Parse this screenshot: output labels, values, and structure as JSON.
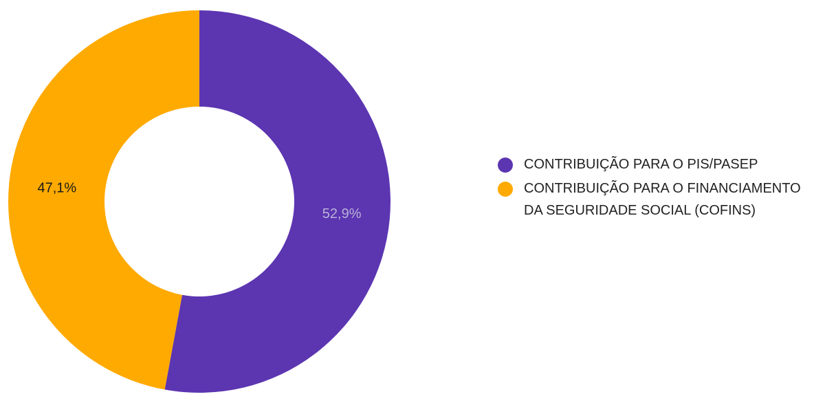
{
  "chart_data": {
    "type": "pie",
    "donut": true,
    "title": "",
    "legend_position": "right",
    "categories": [
      "CONTRIBUIÇÃO PARA O PIS/PASEP",
      "CONTRIBUIÇÃO PARA O FINANCIAMENTO DA SEGURIDADE SOCIAL (COFINS)"
    ],
    "values": [
      52.9,
      47.1
    ],
    "labels": [
      "52,9%",
      "47,1%"
    ],
    "colors": [
      "#5c35b1",
      "#ffaa00"
    ],
    "label_colors": [
      "#b9b3d9",
      "#1a1a1a"
    ]
  }
}
